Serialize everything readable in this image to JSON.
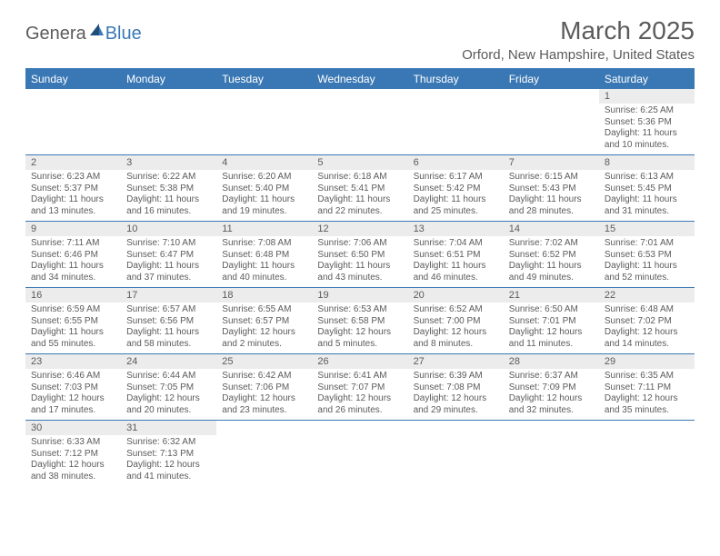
{
  "brand": {
    "part_a": "Genera",
    "part_b": "Blue",
    "sail_color": "#3a78b5"
  },
  "title": "March 2025",
  "location": "Orford, New Hampshire, United States",
  "colors": {
    "accent": "#3a78b5",
    "text": "#5b5b5b",
    "daynum_bg": "#ececec",
    "background": "#ffffff"
  },
  "typography": {
    "title_fontsize": 28,
    "location_fontsize": 15,
    "dow_fontsize": 12,
    "cell_fontsize": 10
  },
  "days_of_week": [
    "Sunday",
    "Monday",
    "Tuesday",
    "Wednesday",
    "Thursday",
    "Friday",
    "Saturday"
  ],
  "layout": {
    "columns": 7,
    "rows": 6,
    "lead_blanks": 6,
    "trail_blanks": 5
  },
  "days": [
    {
      "n": "1",
      "sunrise": "6:25 AM",
      "sunset": "5:36 PM",
      "daylight": "11 hours and 10 minutes."
    },
    {
      "n": "2",
      "sunrise": "6:23 AM",
      "sunset": "5:37 PM",
      "daylight": "11 hours and 13 minutes."
    },
    {
      "n": "3",
      "sunrise": "6:22 AM",
      "sunset": "5:38 PM",
      "daylight": "11 hours and 16 minutes."
    },
    {
      "n": "4",
      "sunrise": "6:20 AM",
      "sunset": "5:40 PM",
      "daylight": "11 hours and 19 minutes."
    },
    {
      "n": "5",
      "sunrise": "6:18 AM",
      "sunset": "5:41 PM",
      "daylight": "11 hours and 22 minutes."
    },
    {
      "n": "6",
      "sunrise": "6:17 AM",
      "sunset": "5:42 PM",
      "daylight": "11 hours and 25 minutes."
    },
    {
      "n": "7",
      "sunrise": "6:15 AM",
      "sunset": "5:43 PM",
      "daylight": "11 hours and 28 minutes."
    },
    {
      "n": "8",
      "sunrise": "6:13 AM",
      "sunset": "5:45 PM",
      "daylight": "11 hours and 31 minutes."
    },
    {
      "n": "9",
      "sunrise": "7:11 AM",
      "sunset": "6:46 PM",
      "daylight": "11 hours and 34 minutes."
    },
    {
      "n": "10",
      "sunrise": "7:10 AM",
      "sunset": "6:47 PM",
      "daylight": "11 hours and 37 minutes."
    },
    {
      "n": "11",
      "sunrise": "7:08 AM",
      "sunset": "6:48 PM",
      "daylight": "11 hours and 40 minutes."
    },
    {
      "n": "12",
      "sunrise": "7:06 AM",
      "sunset": "6:50 PM",
      "daylight": "11 hours and 43 minutes."
    },
    {
      "n": "13",
      "sunrise": "7:04 AM",
      "sunset": "6:51 PM",
      "daylight": "11 hours and 46 minutes."
    },
    {
      "n": "14",
      "sunrise": "7:02 AM",
      "sunset": "6:52 PM",
      "daylight": "11 hours and 49 minutes."
    },
    {
      "n": "15",
      "sunrise": "7:01 AM",
      "sunset": "6:53 PM",
      "daylight": "11 hours and 52 minutes."
    },
    {
      "n": "16",
      "sunrise": "6:59 AM",
      "sunset": "6:55 PM",
      "daylight": "11 hours and 55 minutes."
    },
    {
      "n": "17",
      "sunrise": "6:57 AM",
      "sunset": "6:56 PM",
      "daylight": "11 hours and 58 minutes."
    },
    {
      "n": "18",
      "sunrise": "6:55 AM",
      "sunset": "6:57 PM",
      "daylight": "12 hours and 2 minutes."
    },
    {
      "n": "19",
      "sunrise": "6:53 AM",
      "sunset": "6:58 PM",
      "daylight": "12 hours and 5 minutes."
    },
    {
      "n": "20",
      "sunrise": "6:52 AM",
      "sunset": "7:00 PM",
      "daylight": "12 hours and 8 minutes."
    },
    {
      "n": "21",
      "sunrise": "6:50 AM",
      "sunset": "7:01 PM",
      "daylight": "12 hours and 11 minutes."
    },
    {
      "n": "22",
      "sunrise": "6:48 AM",
      "sunset": "7:02 PM",
      "daylight": "12 hours and 14 minutes."
    },
    {
      "n": "23",
      "sunrise": "6:46 AM",
      "sunset": "7:03 PM",
      "daylight": "12 hours and 17 minutes."
    },
    {
      "n": "24",
      "sunrise": "6:44 AM",
      "sunset": "7:05 PM",
      "daylight": "12 hours and 20 minutes."
    },
    {
      "n": "25",
      "sunrise": "6:42 AM",
      "sunset": "7:06 PM",
      "daylight": "12 hours and 23 minutes."
    },
    {
      "n": "26",
      "sunrise": "6:41 AM",
      "sunset": "7:07 PM",
      "daylight": "12 hours and 26 minutes."
    },
    {
      "n": "27",
      "sunrise": "6:39 AM",
      "sunset": "7:08 PM",
      "daylight": "12 hours and 29 minutes."
    },
    {
      "n": "28",
      "sunrise": "6:37 AM",
      "sunset": "7:09 PM",
      "daylight": "12 hours and 32 minutes."
    },
    {
      "n": "29",
      "sunrise": "6:35 AM",
      "sunset": "7:11 PM",
      "daylight": "12 hours and 35 minutes."
    },
    {
      "n": "30",
      "sunrise": "6:33 AM",
      "sunset": "7:12 PM",
      "daylight": "12 hours and 38 minutes."
    },
    {
      "n": "31",
      "sunrise": "6:32 AM",
      "sunset": "7:13 PM",
      "daylight": "12 hours and 41 minutes."
    }
  ],
  "labels": {
    "sunrise": "Sunrise:",
    "sunset": "Sunset:",
    "daylight": "Daylight:"
  }
}
